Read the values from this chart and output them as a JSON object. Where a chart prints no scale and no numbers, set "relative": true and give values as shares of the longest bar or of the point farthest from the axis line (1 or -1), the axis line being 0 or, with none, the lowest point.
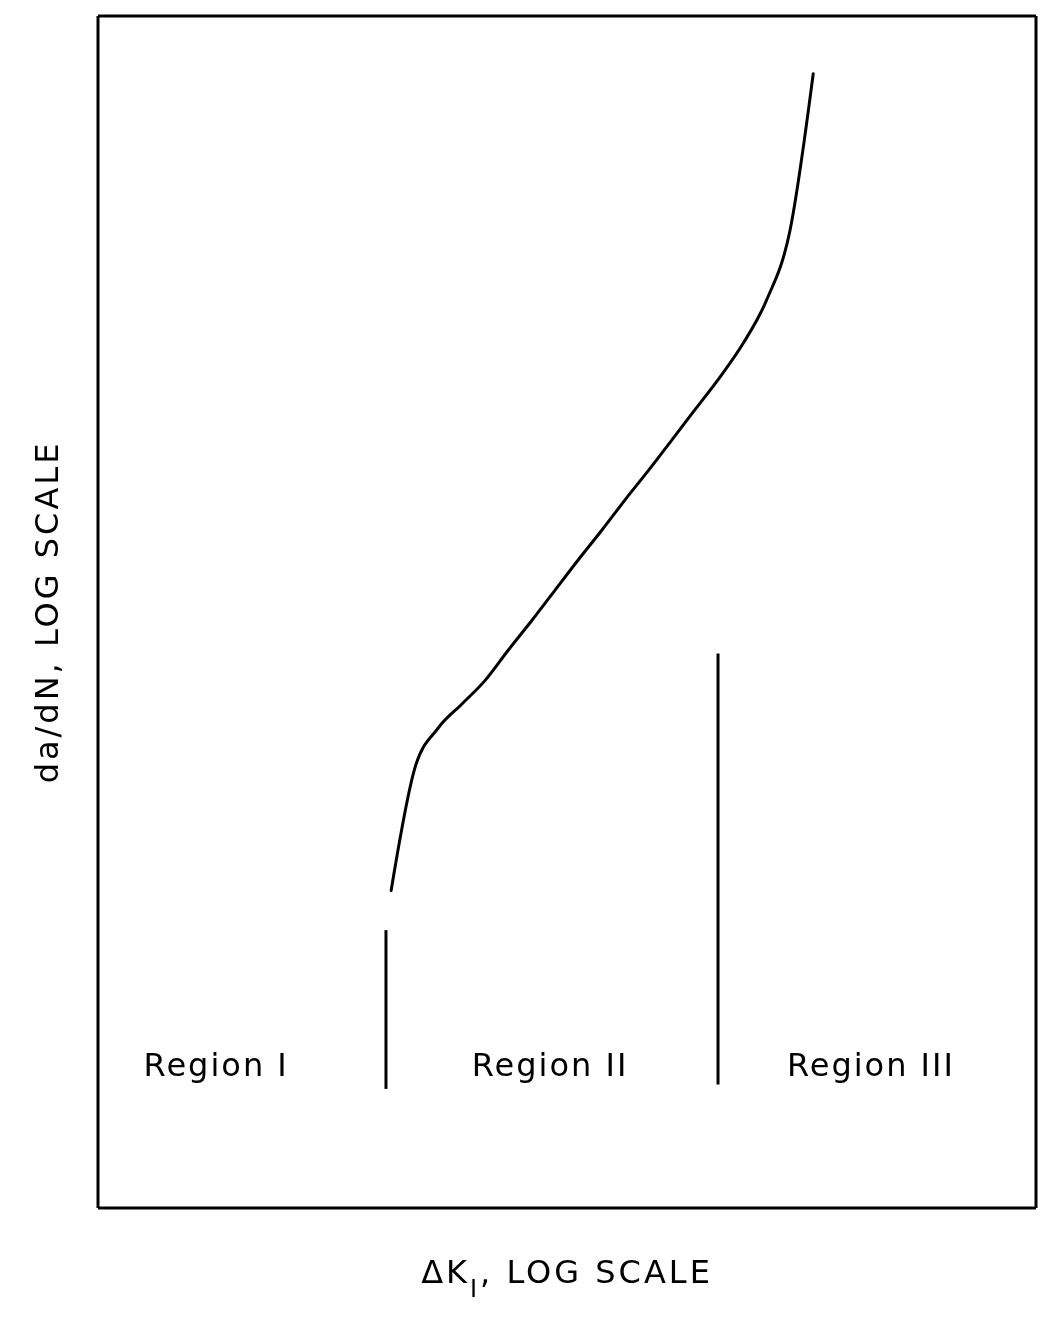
{
  "chart_data": {
    "type": "line",
    "relative": true,
    "xlabel": "ΔK$_{I}$, LOG SCALE",
    "ylabel": "da/dN, LOG SCALE",
    "marker": "none",
    "line_style": "solid",
    "categories": [
      null,
      null,
      null,
      null,
      null,
      null,
      null,
      null,
      null,
      null,
      null,
      null,
      null,
      null,
      null,
      null,
      null,
      null,
      null,
      null,
      null,
      null,
      null,
      null,
      null,
      null,
      null,
      null,
      null,
      null,
      null,
      null,
      null,
      null,
      null,
      null,
      null,
      null,
      null,
      null
    ],
    "series": [
      {
        "color": "#000000",
        "values": [
          null,
          null,
          null,
          null,
          null,
          null,
          null,
          null,
          null,
          null,
          null,
          null,
          0.28,
          0.387,
          0.423,
          0.444,
          0.465,
          0.492,
          0.518,
          0.545,
          0.572,
          0.598,
          0.625,
          0.651,
          0.678,
          0.705,
          0.732,
          0.762,
          0.8,
          0.861,
          1,
          null,
          null,
          null,
          null,
          null,
          null,
          null,
          null,
          null
        ]
      }
    ],
    "annotations": [
      "Region I",
      "Region II",
      "Region III"
    ]
  }
}
